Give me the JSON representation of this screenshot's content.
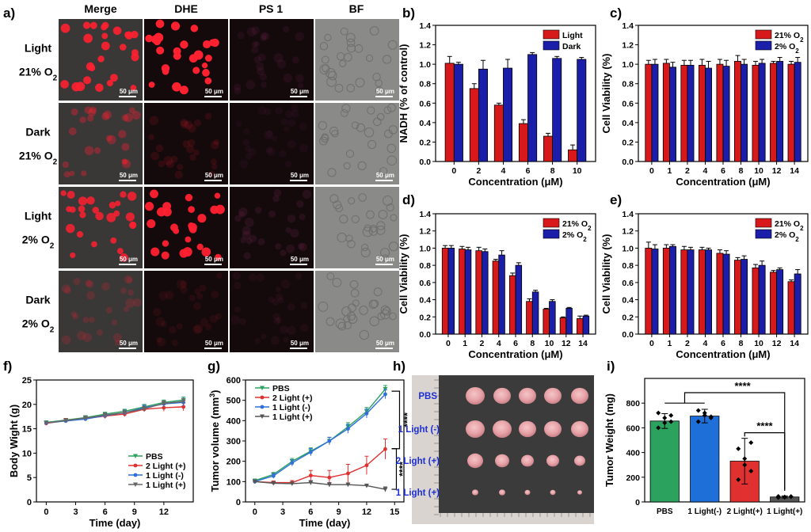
{
  "panel_labels": [
    "a)",
    "b)",
    "c)",
    "d)",
    "e)",
    "f)",
    "g)",
    "h)",
    "i)"
  ],
  "micro": {
    "columns": [
      "Merge",
      "DHE",
      "PS 1",
      "BF"
    ],
    "rows": [
      {
        "cond": "Light",
        "o2": "21% O",
        "sub": "2"
      },
      {
        "cond": "Dark",
        "o2": "21% O",
        "sub": "2"
      },
      {
        "cond": "Light",
        "o2": "2% O",
        "sub": "2"
      },
      {
        "cond": "Dark",
        "o2": "2% O",
        "sub": "2"
      }
    ],
    "scale_bar": "50 μm"
  },
  "tumor_photo": {
    "row_labels": [
      "PBS",
      "1 Light (-)",
      "2 Light (+)",
      "1 Light (+)"
    ]
  },
  "chart_data": [
    {
      "id": "b",
      "type": "bar",
      "categories": [
        "0",
        "2",
        "4",
        "6",
        "8",
        "10"
      ],
      "series": [
        {
          "name": "Light",
          "color": "#d7191c",
          "values": [
            1.01,
            0.75,
            0.58,
            0.39,
            0.26,
            0.12
          ],
          "errors": [
            0.07,
            0.05,
            0.02,
            0.04,
            0.03,
            0.05
          ]
        },
        {
          "name": "Dark",
          "color": "#1a1ea8",
          "values": [
            1.0,
            0.95,
            0.96,
            1.1,
            1.06,
            1.05
          ],
          "errors": [
            0.02,
            0.09,
            0.09,
            0.02,
            0.02,
            0.02
          ]
        }
      ],
      "xlabel": "Concentration (μM)",
      "ylabel": "NADH (% of control)",
      "ylim": [
        0.0,
        1.4
      ],
      "yticks": [
        "0.0",
        "0.2",
        "0.4",
        "0.6",
        "0.8",
        "1.0",
        "1.2",
        "1.4"
      ],
      "legend": "top-right"
    },
    {
      "id": "c",
      "type": "bar",
      "categories": [
        "0",
        "1",
        "2",
        "4",
        "6",
        "8",
        "10",
        "12",
        "14"
      ],
      "series": [
        {
          "name": "21% O",
          "sub": "2",
          "color": "#d7191c",
          "values": [
            1.0,
            1.01,
            0.99,
            0.99,
            1.0,
            1.03,
            0.99,
            1.01,
            1.0
          ],
          "errors": [
            0.04,
            0.04,
            0.05,
            0.06,
            0.05,
            0.06,
            0.04,
            0.02,
            0.03
          ]
        },
        {
          "name": "2% O",
          "sub": "2",
          "color": "#1a1ea8",
          "values": [
            1.0,
            0.97,
            0.99,
            0.96,
            0.98,
            1.0,
            1.01,
            1.03,
            1.02
          ],
          "errors": [
            0.05,
            0.05,
            0.05,
            0.07,
            0.06,
            0.05,
            0.04,
            0.04,
            0.05
          ]
        }
      ],
      "xlabel": "Concentration (μM)",
      "ylabel": "Cell Viability (%)",
      "ylim": [
        0.0,
        1.4
      ],
      "yticks": [
        "0.0",
        "0.2",
        "0.4",
        "0.6",
        "0.8",
        "1.0",
        "1.2",
        "1.4"
      ],
      "legend": "top-right"
    },
    {
      "id": "d",
      "type": "bar",
      "categories": [
        "0",
        "1",
        "2",
        "4",
        "6",
        "8",
        "10",
        "12",
        "14"
      ],
      "series": [
        {
          "name": "21% O",
          "sub": "2",
          "color": "#d7191c",
          "values": [
            1.0,
            0.99,
            0.97,
            0.85,
            0.68,
            0.38,
            0.29,
            0.19,
            0.18
          ],
          "errors": [
            0.03,
            0.03,
            0.04,
            0.02,
            0.03,
            0.03,
            0.01,
            0.01,
            0.03
          ]
        },
        {
          "name": "2% O",
          "sub": "2",
          "color": "#1a1ea8",
          "values": [
            1.0,
            0.98,
            0.96,
            0.92,
            0.8,
            0.49,
            0.38,
            0.3,
            0.21
          ],
          "errors": [
            0.03,
            0.03,
            0.03,
            0.05,
            0.03,
            0.02,
            0.02,
            0.01,
            0.01
          ]
        }
      ],
      "xlabel": "Concentration (μM)",
      "ylabel": "Cell Viability (%)",
      "ylim": [
        0.0,
        1.4
      ],
      "yticks": [
        "0.0",
        "0.2",
        "0.4",
        "0.6",
        "0.8",
        "1.0",
        "1.2",
        "1.4"
      ],
      "legend": "top-right"
    },
    {
      "id": "e",
      "type": "bar",
      "categories": [
        "0",
        "1",
        "2",
        "4",
        "6",
        "8",
        "10",
        "12",
        "14"
      ],
      "series": [
        {
          "name": "21% O",
          "sub": "2",
          "color": "#d7191c",
          "values": [
            1.0,
            1.0,
            0.98,
            0.98,
            0.94,
            0.86,
            0.77,
            0.72,
            0.61
          ],
          "errors": [
            0.07,
            0.04,
            0.04,
            0.03,
            0.04,
            0.03,
            0.04,
            0.02,
            0.02
          ]
        },
        {
          "name": "2% O",
          "sub": "2",
          "color": "#1a1ea8",
          "values": [
            0.99,
            1.02,
            0.98,
            0.98,
            0.93,
            0.87,
            0.8,
            0.75,
            0.7
          ],
          "errors": [
            0.05,
            0.02,
            0.03,
            0.02,
            0.04,
            0.04,
            0.05,
            0.02,
            0.05
          ]
        }
      ],
      "xlabel": "Concentration (μM)",
      "ylabel": "Cell Viability (%)",
      "ylim": [
        0.0,
        1.4
      ],
      "yticks": [
        "0.0",
        "0.2",
        "0.4",
        "0.6",
        "0.8",
        "1.0",
        "1.2",
        "1.4"
      ],
      "legend": "top-right"
    },
    {
      "id": "f",
      "type": "line",
      "x": [
        0,
        2,
        4,
        6,
        8,
        10,
        12,
        14
      ],
      "series": [
        {
          "name": "PBS",
          "color": "#2ca25f",
          "marker": "triangle-down",
          "values": [
            16.3,
            16.8,
            17.3,
            18.0,
            18.6,
            19.5,
            20.4,
            20.9
          ],
          "errors": [
            0.3,
            0.3,
            0.4,
            0.4,
            0.4,
            0.5,
            0.5,
            0.6
          ]
        },
        {
          "name": "2 Light (+)",
          "color": "#e03030",
          "marker": "circle",
          "values": [
            16.1,
            16.7,
            17.1,
            17.6,
            18.0,
            19.0,
            19.3,
            19.5
          ],
          "errors": [
            0.3,
            0.4,
            0.4,
            0.5,
            0.5,
            0.5,
            0.7,
            0.8
          ]
        },
        {
          "name": "1 Light (-)",
          "color": "#2f6fd8",
          "marker": "circle",
          "values": [
            16.2,
            16.6,
            17.0,
            17.7,
            18.3,
            19.3,
            20.1,
            20.4
          ],
          "errors": [
            0.3,
            0.3,
            0.4,
            0.4,
            0.5,
            0.5,
            0.6,
            0.8
          ]
        },
        {
          "name": "1 Light (+)",
          "color": "#666666",
          "marker": "triangle-down",
          "values": [
            16.2,
            16.7,
            17.2,
            17.8,
            18.3,
            19.1,
            20.2,
            20.6
          ],
          "errors": [
            0.3,
            0.3,
            0.4,
            0.4,
            0.4,
            0.5,
            0.5,
            0.6
          ]
        }
      ],
      "xlabel": "Time (day)",
      "ylabel": "Body Wight (g)",
      "xlim": [
        -1,
        15
      ],
      "ylim": [
        0,
        25
      ],
      "xticks": [
        0,
        3,
        6,
        9,
        12
      ],
      "yticks": [
        0,
        5,
        10,
        15,
        20,
        25
      ],
      "legend": "bottom-right"
    },
    {
      "id": "g",
      "type": "line",
      "x": [
        0,
        2,
        4,
        6,
        8,
        10,
        12,
        14
      ],
      "series": [
        {
          "name": "PBS",
          "color": "#2ca25f",
          "marker": "triangle-down",
          "values": [
            105,
            135,
            200,
            250,
            300,
            370,
            445,
            555
          ],
          "errors": [
            8,
            10,
            14,
            16,
            18,
            20,
            20,
            18
          ]
        },
        {
          "name": "2 Light (+)",
          "color": "#e03030",
          "marker": "circle",
          "values": [
            100,
            95,
            95,
            130,
            120,
            140,
            180,
            260
          ],
          "errors": [
            8,
            8,
            10,
            25,
            35,
            45,
            45,
            50
          ]
        },
        {
          "name": "1 Light (-)",
          "color": "#2f6fd8",
          "marker": "circle",
          "values": [
            100,
            128,
            192,
            245,
            300,
            360,
            435,
            530
          ],
          "errors": [
            8,
            12,
            16,
            18,
            18,
            22,
            22,
            22
          ]
        },
        {
          "name": "1 Light (+)",
          "color": "#555555",
          "marker": "triangle-down",
          "values": [
            100,
            92,
            90,
            95,
            85,
            85,
            80,
            62
          ],
          "errors": [
            6,
            5,
            6,
            10,
            10,
            8,
            8,
            12
          ]
        }
      ],
      "xlabel": "Time (day)",
      "ylabel": "Tumor volume (mm",
      "ylabel_sup": "3",
      "ylabel_end": ")",
      "xlim": [
        -1,
        16
      ],
      "ylim": [
        0,
        600
      ],
      "xticks": [
        0,
        3,
        6,
        9,
        12,
        15
      ],
      "yticks": [
        0,
        100,
        200,
        300,
        400,
        500,
        600
      ],
      "legend": "top-left",
      "significance": [
        "****",
        "****"
      ]
    },
    {
      "id": "i",
      "type": "bar",
      "categories": [
        "PBS",
        "1 Light(-)",
        "2 Light(+)",
        "1 Light(+)"
      ],
      "values": [
        655,
        695,
        330,
        40
      ],
      "errors": [
        60,
        55,
        185,
        8
      ],
      "colors": [
        "#2ca25f",
        "#1f6fd8",
        "#e03030",
        "#555555"
      ],
      "points": [
        [
          720,
          680,
          650,
          600,
          640,
          700
        ],
        [
          740,
          700,
          680,
          650,
          720,
          690
        ],
        [
          430,
          350,
          250,
          180,
          300,
          480
        ],
        [
          45,
          38,
          42,
          35,
          40,
          44
        ]
      ],
      "xlabel": "",
      "ylabel": "Tumor Weight (mg)",
      "ylim": [
        0,
        1000
      ],
      "yticks": [
        0,
        200,
        400,
        600,
        800
      ],
      "significance": [
        "****",
        "****"
      ]
    }
  ]
}
